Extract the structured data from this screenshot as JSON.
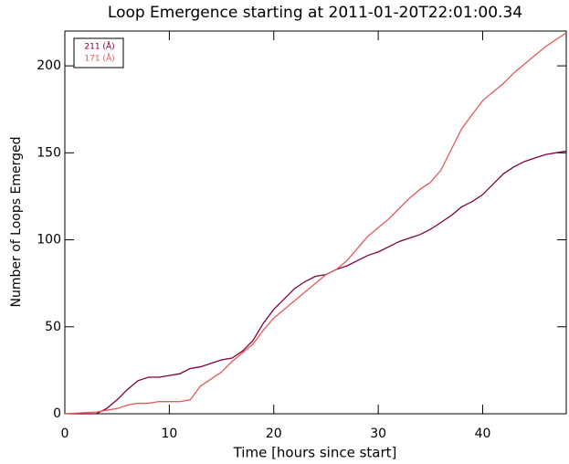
{
  "chart_data": {
    "type": "line",
    "title": "Loop Emergence starting at 2011-01-20T22:01:00.34",
    "x_label": "Time [hours since start]",
    "y_label": "Number of Loops Emerged",
    "x": [
      0,
      3,
      4,
      5,
      6,
      7,
      8,
      9,
      10,
      11,
      12,
      13,
      14,
      15,
      16,
      17,
      18,
      19,
      20,
      21,
      22,
      23,
      24,
      25,
      26,
      27,
      28,
      29,
      30,
      31,
      32,
      33,
      34,
      35,
      36,
      37,
      38,
      39,
      40,
      41,
      42,
      43,
      44,
      45,
      46,
      47,
      48
    ],
    "series": [
      {
        "name": "211 (Å)",
        "color": "#800040",
        "values": [
          0,
          0,
          3,
          8,
          14,
          19,
          21,
          21,
          22,
          23,
          26,
          27,
          29,
          31,
          32,
          36,
          42,
          52,
          60,
          66,
          72,
          76,
          79,
          80,
          83,
          85,
          88,
          91,
          93,
          96,
          99,
          101,
          103,
          106,
          110,
          114,
          119,
          122,
          126,
          132,
          138,
          142,
          145,
          147,
          149,
          150,
          151
        ]
      },
      {
        "name": "171 (Å)",
        "color": "#e05a5a",
        "values": [
          0,
          1,
          2,
          3,
          5,
          6,
          6,
          7,
          7,
          7,
          8,
          16,
          20,
          24,
          30,
          35,
          40,
          48,
          55,
          60,
          65,
          70,
          75,
          80,
          83,
          88,
          95,
          102,
          107,
          112,
          118,
          124,
          129,
          133,
          140,
          152,
          164,
          172,
          180,
          185,
          190,
          196,
          201,
          206,
          211,
          215,
          219
        ]
      }
    ],
    "xlim": [
      0,
      48
    ],
    "ylim": [
      0,
      220
    ],
    "xticks": [
      0,
      10,
      20,
      30,
      40
    ],
    "yticks": [
      0,
      50,
      100,
      150,
      200
    ],
    "legend": "upper left"
  }
}
